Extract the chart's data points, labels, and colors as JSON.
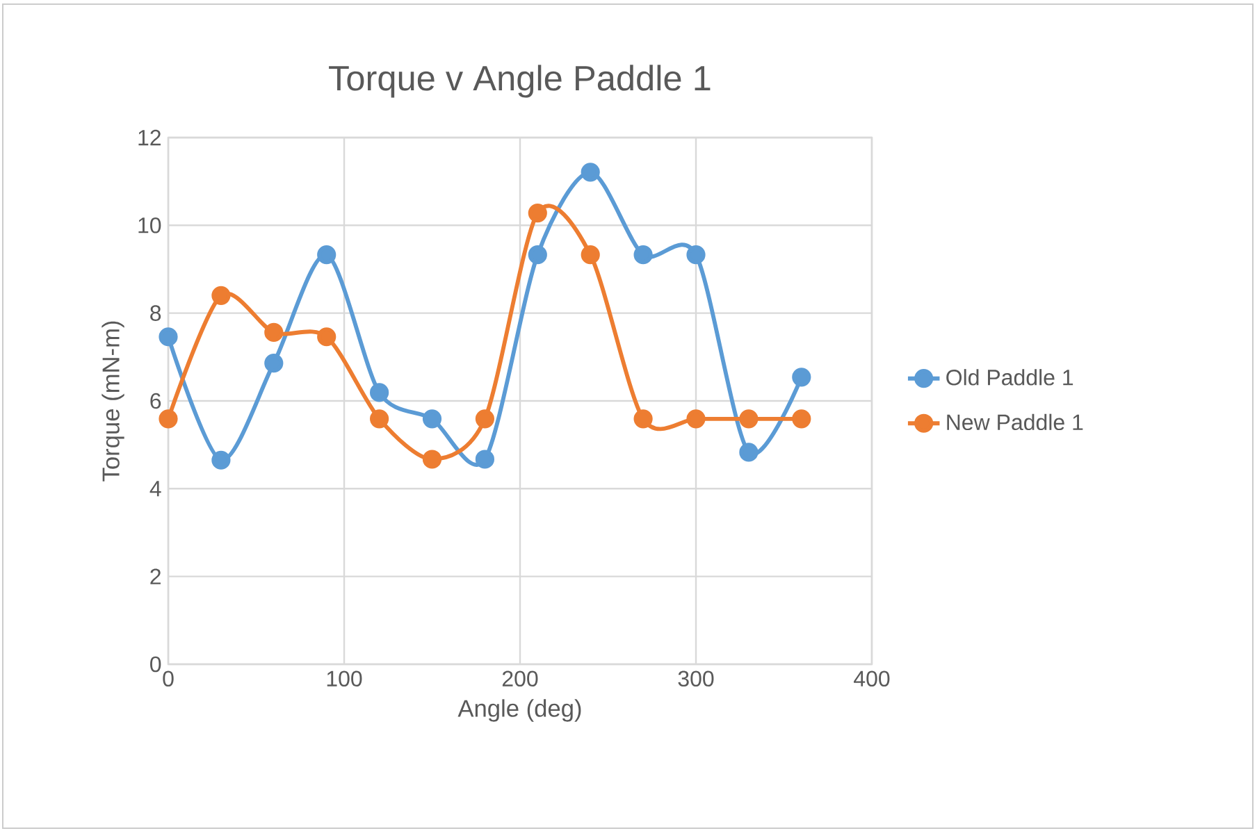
{
  "chart_data": {
    "type": "line",
    "title": "Torque v Angle Paddle 1",
    "xlabel": "Angle (deg)",
    "ylabel": "Torque (mN-m)",
    "x": [
      0,
      30,
      60,
      90,
      120,
      150,
      180,
      210,
      240,
      270,
      300,
      330,
      360
    ],
    "series": [
      {
        "name": "Old Paddle 1",
        "color": "#5b9bd5",
        "values": [
          7.46,
          4.65,
          6.86,
          9.33,
          6.19,
          5.59,
          4.67,
          9.33,
          11.21,
          9.33,
          9.33,
          4.83,
          6.54
        ]
      },
      {
        "name": "New Paddle 1",
        "color": "#ed7d31",
        "values": [
          5.59,
          8.4,
          7.56,
          7.46,
          5.59,
          4.67,
          5.59,
          10.28,
          9.33,
          5.59,
          5.59,
          5.59,
          5.59
        ]
      }
    ],
    "xlim": [
      0,
      400
    ],
    "ylim": [
      0,
      12
    ],
    "xticks": [
      0,
      100,
      200,
      300,
      400
    ],
    "yticks": [
      0,
      2,
      4,
      6,
      8,
      10,
      12
    ],
    "grid": true,
    "legend": "right",
    "marker": "circle",
    "line_style": "solid"
  }
}
